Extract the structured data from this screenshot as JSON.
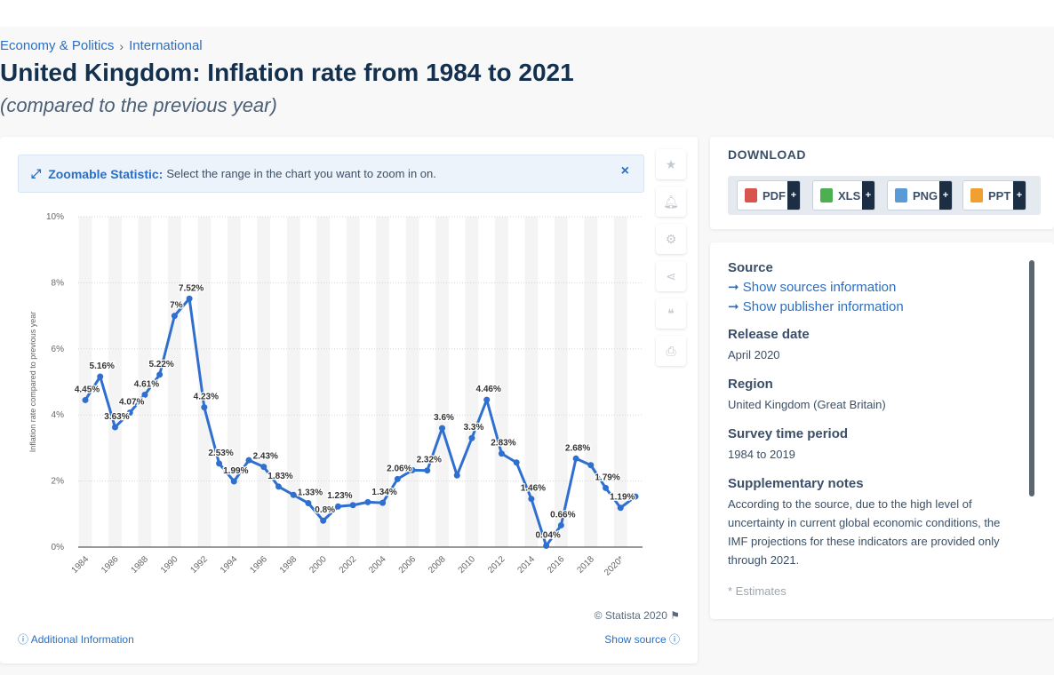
{
  "breadcrumb": {
    "item1": "Economy & Politics",
    "sep": "›",
    "item2": "International"
  },
  "page": {
    "title": "United Kingdom: Inflation rate from 1984 to 2021",
    "subtitle": "(compared to the previous year)"
  },
  "zoom_banner": {
    "label": "Zoomable Statistic:",
    "text": "Select the range in the chart you want to zoom in on.",
    "close": "×"
  },
  "toolbar": {
    "icons": [
      "star-icon",
      "bell-icon",
      "gear-icon",
      "share-icon",
      "quote-icon",
      "print-icon"
    ]
  },
  "chart_footer": {
    "copyright": "© Statista 2020",
    "additional_info": "Additional Information",
    "show_source": "Show source"
  },
  "download": {
    "title": "DOWNLOAD",
    "buttons": [
      {
        "label": "PDF",
        "color": "#d9534f"
      },
      {
        "label": "XLS",
        "color": "#4caf50"
      },
      {
        "label": "PNG",
        "color": "#5b9bd5"
      },
      {
        "label": "PPT",
        "color": "#f0a030"
      }
    ],
    "plus": "+"
  },
  "info": {
    "source_head": "Source",
    "show_sources": "Show sources information",
    "show_publisher": "Show publisher information",
    "release_head": "Release date",
    "release_val": "April 2020",
    "region_head": "Region",
    "region_val": "United Kingdom (Great Britain)",
    "period_head": "Survey time period",
    "period_val": "1984 to 2019",
    "notes_head": "Supplementary notes",
    "notes_val": "According to the source, due to the high level of uncertainty in current global economic conditions, the IMF projections for these indicators are provided only through 2021.",
    "notes_extra": "* Estimates"
  },
  "chart_data": {
    "type": "line",
    "ylabel": "Inflation rate compared to previous year",
    "ylim": [
      0,
      10
    ],
    "yticks": [
      "0%",
      "2%",
      "4%",
      "6%",
      "8%",
      "10%"
    ],
    "xtick_labels": [
      "1984",
      "1986",
      "1988",
      "1990",
      "1992",
      "1994",
      "1996",
      "1998",
      "2000",
      "2002",
      "2004",
      "2006",
      "2008",
      "2010",
      "2012",
      "2014",
      "2016",
      "2018",
      "2020*"
    ],
    "x": [
      1984,
      1985,
      1986,
      1987,
      1988,
      1989,
      1990,
      1991,
      1992,
      1993,
      1994,
      1995,
      1996,
      1997,
      1998,
      1999,
      2000,
      2001,
      2002,
      2003,
      2004,
      2005,
      2006,
      2007,
      2008,
      2009,
      2010,
      2011,
      2012,
      2013,
      2014,
      2015,
      2016,
      2017,
      2018,
      2019,
      2020,
      2021
    ],
    "values": [
      4.45,
      5.16,
      3.63,
      4.07,
      4.61,
      5.22,
      7.0,
      7.52,
      4.23,
      2.53,
      1.99,
      2.63,
      2.43,
      1.83,
      1.58,
      1.33,
      0.8,
      1.23,
      1.27,
      1.36,
      1.34,
      2.06,
      2.33,
      2.32,
      3.6,
      2.17,
      3.3,
      4.46,
      2.83,
      2.56,
      1.46,
      0.04,
      0.66,
      2.68,
      2.48,
      1.79,
      1.19,
      1.53
    ],
    "data_labels": {
      "1984": "4.45%",
      "1985": "5.16%",
      "1986": "3.63%",
      "1987": "4.07%",
      "1988": "4.61%",
      "1989": "5.22%",
      "1990": "7%",
      "1991": "7.52%",
      "1992": "4.23%",
      "1993": "2.53%",
      "1994": "1.99%",
      "1996": "2.43%",
      "1997": "1.83%",
      "1999": "1.33%",
      "2000": "0.8%",
      "2001": "1.23%",
      "2004": "1.34%",
      "2005": "2.06%",
      "2007": "2.32%",
      "2008": "3.6%",
      "2010": "3.3%",
      "2011": "4.46%",
      "2012": "2.83%",
      "2014": "1.46%",
      "2015": "0.04%",
      "2016": "0.66%",
      "2017": "2.68%",
      "2019": "1.79%",
      "2020": "1.19%"
    },
    "line_color": "#2f6fd0",
    "grid": true
  }
}
